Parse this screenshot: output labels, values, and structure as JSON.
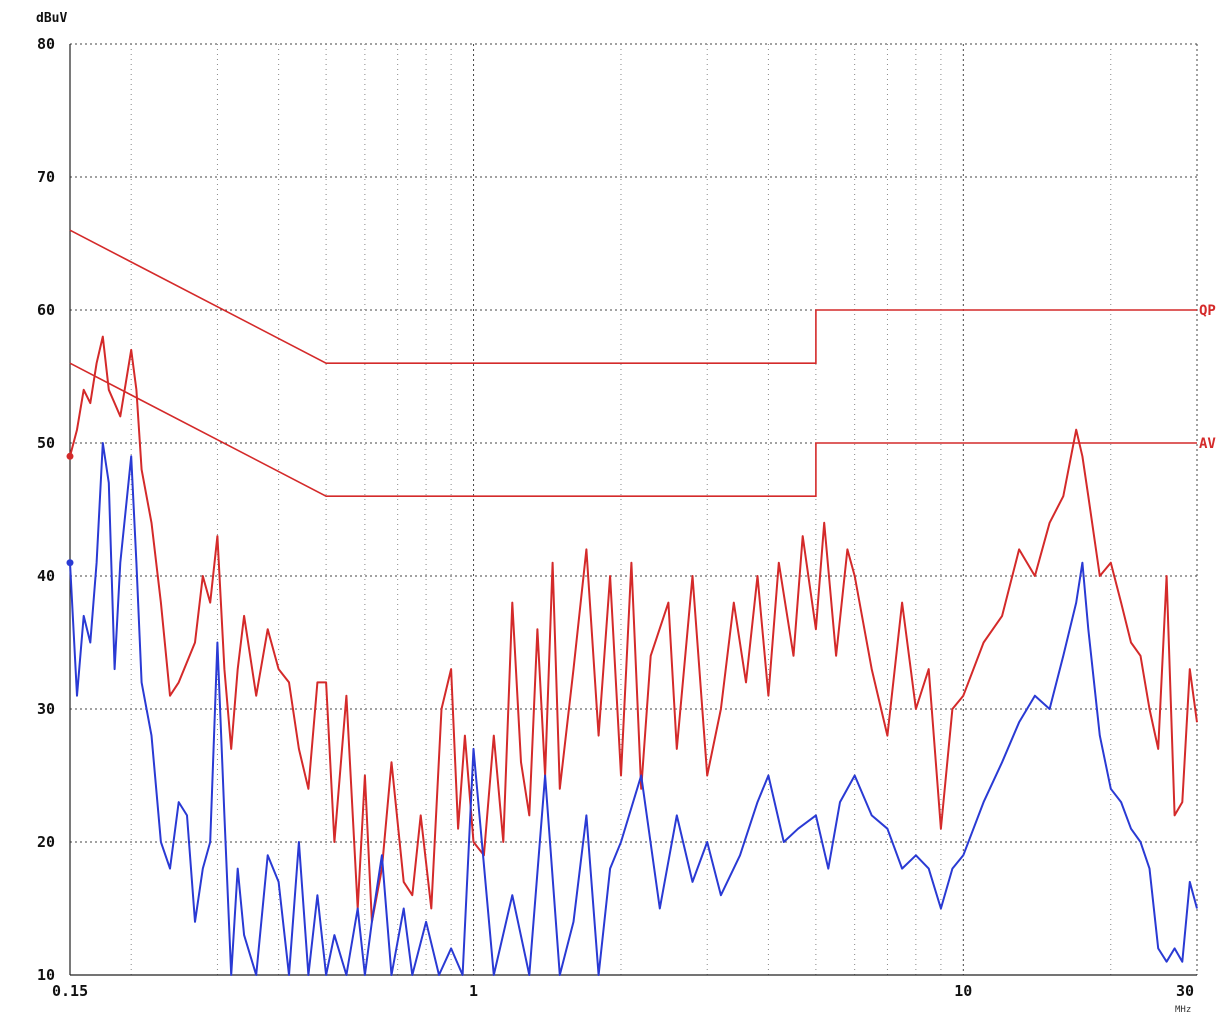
{
  "chart_data": {
    "type": "line",
    "title": "",
    "xlabel": "MHz",
    "ylabel": "dBuV",
    "x_scale": "log",
    "xlim": [
      0.15,
      30
    ],
    "ylim": [
      10,
      80
    ],
    "x_tick_labels": [
      "0.15",
      "1",
      "10",
      "30"
    ],
    "x_ticks": [
      0.15,
      1,
      10,
      30
    ],
    "y_ticks": [
      10,
      20,
      30,
      40,
      50,
      60,
      70,
      80
    ],
    "grid": true,
    "colors": {
      "limit": "#d42a2a",
      "peak": "#d42a2a",
      "average": "#2a3ad4",
      "grid": "#444444"
    },
    "limits": [
      {
        "label": "QP",
        "points": [
          [
            0.15,
            66
          ],
          [
            0.5,
            56
          ],
          [
            5,
            56
          ],
          [
            5,
            60
          ],
          [
            30,
            60
          ]
        ]
      },
      {
        "label": "AV",
        "points": [
          [
            0.15,
            56
          ],
          [
            0.5,
            46
          ],
          [
            5,
            46
          ],
          [
            5,
            50
          ],
          [
            30,
            50
          ]
        ]
      }
    ],
    "series": [
      {
        "color": "#d42a2a",
        "points": [
          [
            0.15,
            49
          ],
          [
            0.155,
            51
          ],
          [
            0.16,
            54
          ],
          [
            0.165,
            53
          ],
          [
            0.17,
            56
          ],
          [
            0.175,
            58
          ],
          [
            0.18,
            54
          ],
          [
            0.185,
            53
          ],
          [
            0.19,
            52
          ],
          [
            0.2,
            57
          ],
          [
            0.205,
            54
          ],
          [
            0.21,
            48
          ],
          [
            0.22,
            44
          ],
          [
            0.23,
            38
          ],
          [
            0.24,
            31
          ],
          [
            0.25,
            32
          ],
          [
            0.27,
            35
          ],
          [
            0.28,
            40
          ],
          [
            0.29,
            38
          ],
          [
            0.3,
            43
          ],
          [
            0.31,
            33
          ],
          [
            0.32,
            27
          ],
          [
            0.33,
            33
          ],
          [
            0.34,
            37
          ],
          [
            0.36,
            31
          ],
          [
            0.38,
            36
          ],
          [
            0.4,
            33
          ],
          [
            0.42,
            32
          ],
          [
            0.44,
            27
          ],
          [
            0.46,
            24
          ],
          [
            0.48,
            32
          ],
          [
            0.5,
            32
          ],
          [
            0.52,
            20
          ],
          [
            0.55,
            31
          ],
          [
            0.58,
            15
          ],
          [
            0.6,
            25
          ],
          [
            0.62,
            14
          ],
          [
            0.65,
            18
          ],
          [
            0.68,
            26
          ],
          [
            0.72,
            17
          ],
          [
            0.75,
            16
          ],
          [
            0.78,
            22
          ],
          [
            0.82,
            15
          ],
          [
            0.86,
            30
          ],
          [
            0.9,
            33
          ],
          [
            0.93,
            21
          ],
          [
            0.96,
            28
          ],
          [
            1.0,
            20
          ],
          [
            1.05,
            19
          ],
          [
            1.1,
            28
          ],
          [
            1.15,
            20
          ],
          [
            1.2,
            38
          ],
          [
            1.25,
            26
          ],
          [
            1.3,
            22
          ],
          [
            1.35,
            36
          ],
          [
            1.4,
            25
          ],
          [
            1.45,
            41
          ],
          [
            1.5,
            24
          ],
          [
            1.6,
            33
          ],
          [
            1.7,
            42
          ],
          [
            1.8,
            28
          ],
          [
            1.9,
            40
          ],
          [
            2.0,
            25
          ],
          [
            2.1,
            41
          ],
          [
            2.2,
            24
          ],
          [
            2.3,
            34
          ],
          [
            2.5,
            38
          ],
          [
            2.6,
            27
          ],
          [
            2.8,
            40
          ],
          [
            3.0,
            25
          ],
          [
            3.2,
            30
          ],
          [
            3.4,
            38
          ],
          [
            3.6,
            32
          ],
          [
            3.8,
            40
          ],
          [
            4.0,
            31
          ],
          [
            4.2,
            41
          ],
          [
            4.5,
            34
          ],
          [
            4.7,
            43
          ],
          [
            5.0,
            36
          ],
          [
            5.2,
            44
          ],
          [
            5.5,
            34
          ],
          [
            5.8,
            42
          ],
          [
            6.0,
            40
          ],
          [
            6.5,
            33
          ],
          [
            7.0,
            28
          ],
          [
            7.5,
            38
          ],
          [
            8.0,
            30
          ],
          [
            8.5,
            33
          ],
          [
            9.0,
            21
          ],
          [
            9.5,
            30
          ],
          [
            10.0,
            31
          ],
          [
            11.0,
            35
          ],
          [
            12.0,
            37
          ],
          [
            13.0,
            42
          ],
          [
            14.0,
            40
          ],
          [
            15.0,
            44
          ],
          [
            16.0,
            46
          ],
          [
            17.0,
            51
          ],
          [
            17.5,
            49
          ],
          [
            18.0,
            46
          ],
          [
            19.0,
            40
          ],
          [
            20.0,
            41
          ],
          [
            21.0,
            38
          ],
          [
            22.0,
            35
          ],
          [
            23.0,
            34
          ],
          [
            24.0,
            30
          ],
          [
            25.0,
            27
          ],
          [
            26.0,
            40
          ],
          [
            27.0,
            22
          ],
          [
            28.0,
            23
          ],
          [
            29.0,
            33
          ],
          [
            30.0,
            29
          ]
        ]
      },
      {
        "color": "#2a3ad4",
        "points": [
          [
            0.15,
            41
          ],
          [
            0.155,
            31
          ],
          [
            0.16,
            37
          ],
          [
            0.165,
            35
          ],
          [
            0.17,
            41
          ],
          [
            0.175,
            50
          ],
          [
            0.18,
            47
          ],
          [
            0.185,
            33
          ],
          [
            0.19,
            41
          ],
          [
            0.2,
            49
          ],
          [
            0.205,
            41
          ],
          [
            0.21,
            32
          ],
          [
            0.22,
            28
          ],
          [
            0.23,
            20
          ],
          [
            0.24,
            18
          ],
          [
            0.25,
            23
          ],
          [
            0.26,
            22
          ],
          [
            0.27,
            14
          ],
          [
            0.28,
            18
          ],
          [
            0.29,
            20
          ],
          [
            0.3,
            35
          ],
          [
            0.31,
            22
          ],
          [
            0.32,
            10
          ],
          [
            0.33,
            18
          ],
          [
            0.34,
            13
          ],
          [
            0.36,
            10
          ],
          [
            0.38,
            19
          ],
          [
            0.4,
            17
          ],
          [
            0.42,
            10
          ],
          [
            0.44,
            20
          ],
          [
            0.46,
            10
          ],
          [
            0.48,
            16
          ],
          [
            0.5,
            10
          ],
          [
            0.52,
            13
          ],
          [
            0.55,
            10
          ],
          [
            0.58,
            15
          ],
          [
            0.6,
            10
          ],
          [
            0.62,
            14
          ],
          [
            0.65,
            19
          ],
          [
            0.68,
            10
          ],
          [
            0.72,
            15
          ],
          [
            0.75,
            10
          ],
          [
            0.8,
            14
          ],
          [
            0.85,
            10
          ],
          [
            0.9,
            12
          ],
          [
            0.95,
            10
          ],
          [
            1.0,
            27
          ],
          [
            1.1,
            10
          ],
          [
            1.2,
            16
          ],
          [
            1.3,
            10
          ],
          [
            1.4,
            25
          ],
          [
            1.5,
            10
          ],
          [
            1.6,
            14
          ],
          [
            1.7,
            22
          ],
          [
            1.8,
            10
          ],
          [
            1.9,
            18
          ],
          [
            2.0,
            20
          ],
          [
            2.2,
            25
          ],
          [
            2.4,
            15
          ],
          [
            2.6,
            22
          ],
          [
            2.8,
            17
          ],
          [
            3.0,
            20
          ],
          [
            3.2,
            16
          ],
          [
            3.5,
            19
          ],
          [
            3.8,
            23
          ],
          [
            4.0,
            25
          ],
          [
            4.3,
            20
          ],
          [
            4.6,
            21
          ],
          [
            5.0,
            22
          ],
          [
            5.3,
            18
          ],
          [
            5.6,
            23
          ],
          [
            6.0,
            25
          ],
          [
            6.5,
            22
          ],
          [
            7.0,
            21
          ],
          [
            7.5,
            18
          ],
          [
            8.0,
            19
          ],
          [
            8.5,
            18
          ],
          [
            9.0,
            15
          ],
          [
            9.5,
            18
          ],
          [
            10.0,
            19
          ],
          [
            11.0,
            23
          ],
          [
            12.0,
            26
          ],
          [
            13.0,
            29
          ],
          [
            14.0,
            31
          ],
          [
            15.0,
            30
          ],
          [
            16.0,
            34
          ],
          [
            17.0,
            38
          ],
          [
            17.5,
            41
          ],
          [
            18.0,
            36
          ],
          [
            19.0,
            28
          ],
          [
            20.0,
            24
          ],
          [
            21.0,
            23
          ],
          [
            22.0,
            21
          ],
          [
            23.0,
            20
          ],
          [
            24.0,
            18
          ],
          [
            25.0,
            12
          ],
          [
            26.0,
            11
          ],
          [
            27.0,
            12
          ],
          [
            28.0,
            11
          ],
          [
            29.0,
            17
          ],
          [
            30.0,
            15
          ]
        ]
      }
    ]
  }
}
